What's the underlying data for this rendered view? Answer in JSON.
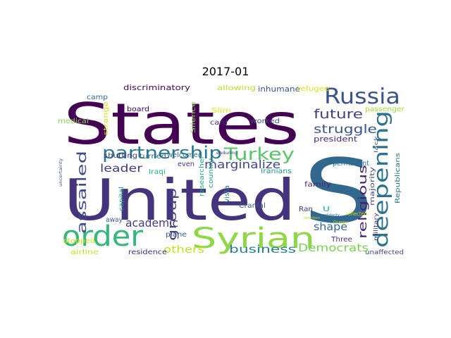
{
  "title": "2017-01",
  "words": [
    {
      "text": "States",
      "color": "#440154"
    },
    {
      "text": "United",
      "color": "#46337e"
    },
    {
      "text": "S",
      "color": "#31688e"
    },
    {
      "text": "Syrian",
      "color": "#8fd744"
    },
    {
      "text": "order",
      "color": "#35b779"
    },
    {
      "text": "deepening",
      "color": "#2c728e"
    },
    {
      "text": "Russia",
      "color": "#3b528b"
    },
    {
      "text": "partnership",
      "color": "#2a788e"
    },
    {
      "text": "Turkey",
      "color": "#58c765"
    },
    {
      "text": "assailed",
      "color": "#3e4a89"
    },
    {
      "text": "future",
      "color": "#433e85"
    },
    {
      "text": "struggle",
      "color": "#39568c"
    },
    {
      "text": "marginalize",
      "color": "#404688"
    },
    {
      "text": "religious",
      "color": "#481f70"
    },
    {
      "text": "group",
      "color": "#414487"
    },
    {
      "text": "academic",
      "color": "#443a83"
    },
    {
      "text": "leader",
      "color": "#453882"
    },
    {
      "text": "shape",
      "color": "#2f6c8e"
    },
    {
      "text": "business",
      "color": "#287d8e"
    },
    {
      "text": "Democrats",
      "color": "#7ad151"
    },
    {
      "text": "others",
      "color": "#c2df23"
    },
    {
      "text": "discriminatory",
      "color": "#46085c"
    },
    {
      "text": "allowing",
      "color": "#b5de2b"
    },
    {
      "text": "inhumane",
      "color": "#38598c"
    },
    {
      "text": "refugee",
      "color": "#d8e219"
    },
    {
      "text": "camp",
      "color": "#31688e"
    },
    {
      "text": "board",
      "color": "#440154"
    },
    {
      "text": "medical",
      "color": "#86d549"
    },
    {
      "text": "strange",
      "color": "#cde11d"
    },
    {
      "text": "Slim",
      "color": "#e5e419"
    },
    {
      "text": "card",
      "color": "#463480"
    },
    {
      "text": "worked",
      "color": "#3b518b"
    },
    {
      "text": "Silence",
      "color": "#8bd646"
    },
    {
      "text": "president",
      "color": "#482576"
    },
    {
      "text": "passenger",
      "color": "#a5db36"
    },
    {
      "text": "shutting",
      "color": "#443983"
    },
    {
      "text": "turned",
      "color": "#2e6e8e"
    },
    {
      "text": "welcomed",
      "color": "#2d718e"
    },
    {
      "text": "enduring",
      "color": "#46307e"
    },
    {
      "text": "lack",
      "color": "#3c508b"
    },
    {
      "text": "Republicans",
      "color": "#2a788e"
    },
    {
      "text": "even",
      "color": "#453781"
    },
    {
      "text": "Iranians",
      "color": "#1f998a"
    },
    {
      "text": "permanent",
      "color": "#2c738e"
    },
    {
      "text": "Iraqi",
      "color": "#2ab07f"
    },
    {
      "text": "researcher",
      "color": "#25ab82"
    },
    {
      "text": "country",
      "color": "#1e9d89"
    },
    {
      "text": "vista",
      "color": "#24878e"
    },
    {
      "text": "family",
      "color": "#482475"
    },
    {
      "text": "majority",
      "color": "#414487"
    },
    {
      "text": "capital",
      "color": "#1f9f88"
    },
    {
      "text": "Cranial",
      "color": "#355f8d"
    },
    {
      "text": "Ran",
      "color": "#46337e"
    },
    {
      "text": "U",
      "color": "#22a785"
    },
    {
      "text": "intention",
      "color": "#b8de29"
    },
    {
      "text": "solidarity",
      "color": "#2d708e"
    },
    {
      "text": "reflected",
      "color": "#d2e21b"
    },
    {
      "text": "away",
      "color": "#375a8c"
    },
    {
      "text": "military",
      "color": "#472d7b"
    },
    {
      "text": "plane",
      "color": "#39568c"
    },
    {
      "text": "Three",
      "color": "#453882"
    },
    {
      "text": "stopped",
      "color": "#c8e020"
    },
    {
      "text": "airline",
      "color": "#c0df25"
    },
    {
      "text": "residence",
      "color": "#472f7d"
    },
    {
      "text": "unaffected",
      "color": "#3e4989"
    },
    {
      "text": "uncertainty",
      "color": "#3b528b"
    },
    {
      "text": "Grumpy",
      "color": "#dde318"
    }
  ]
}
